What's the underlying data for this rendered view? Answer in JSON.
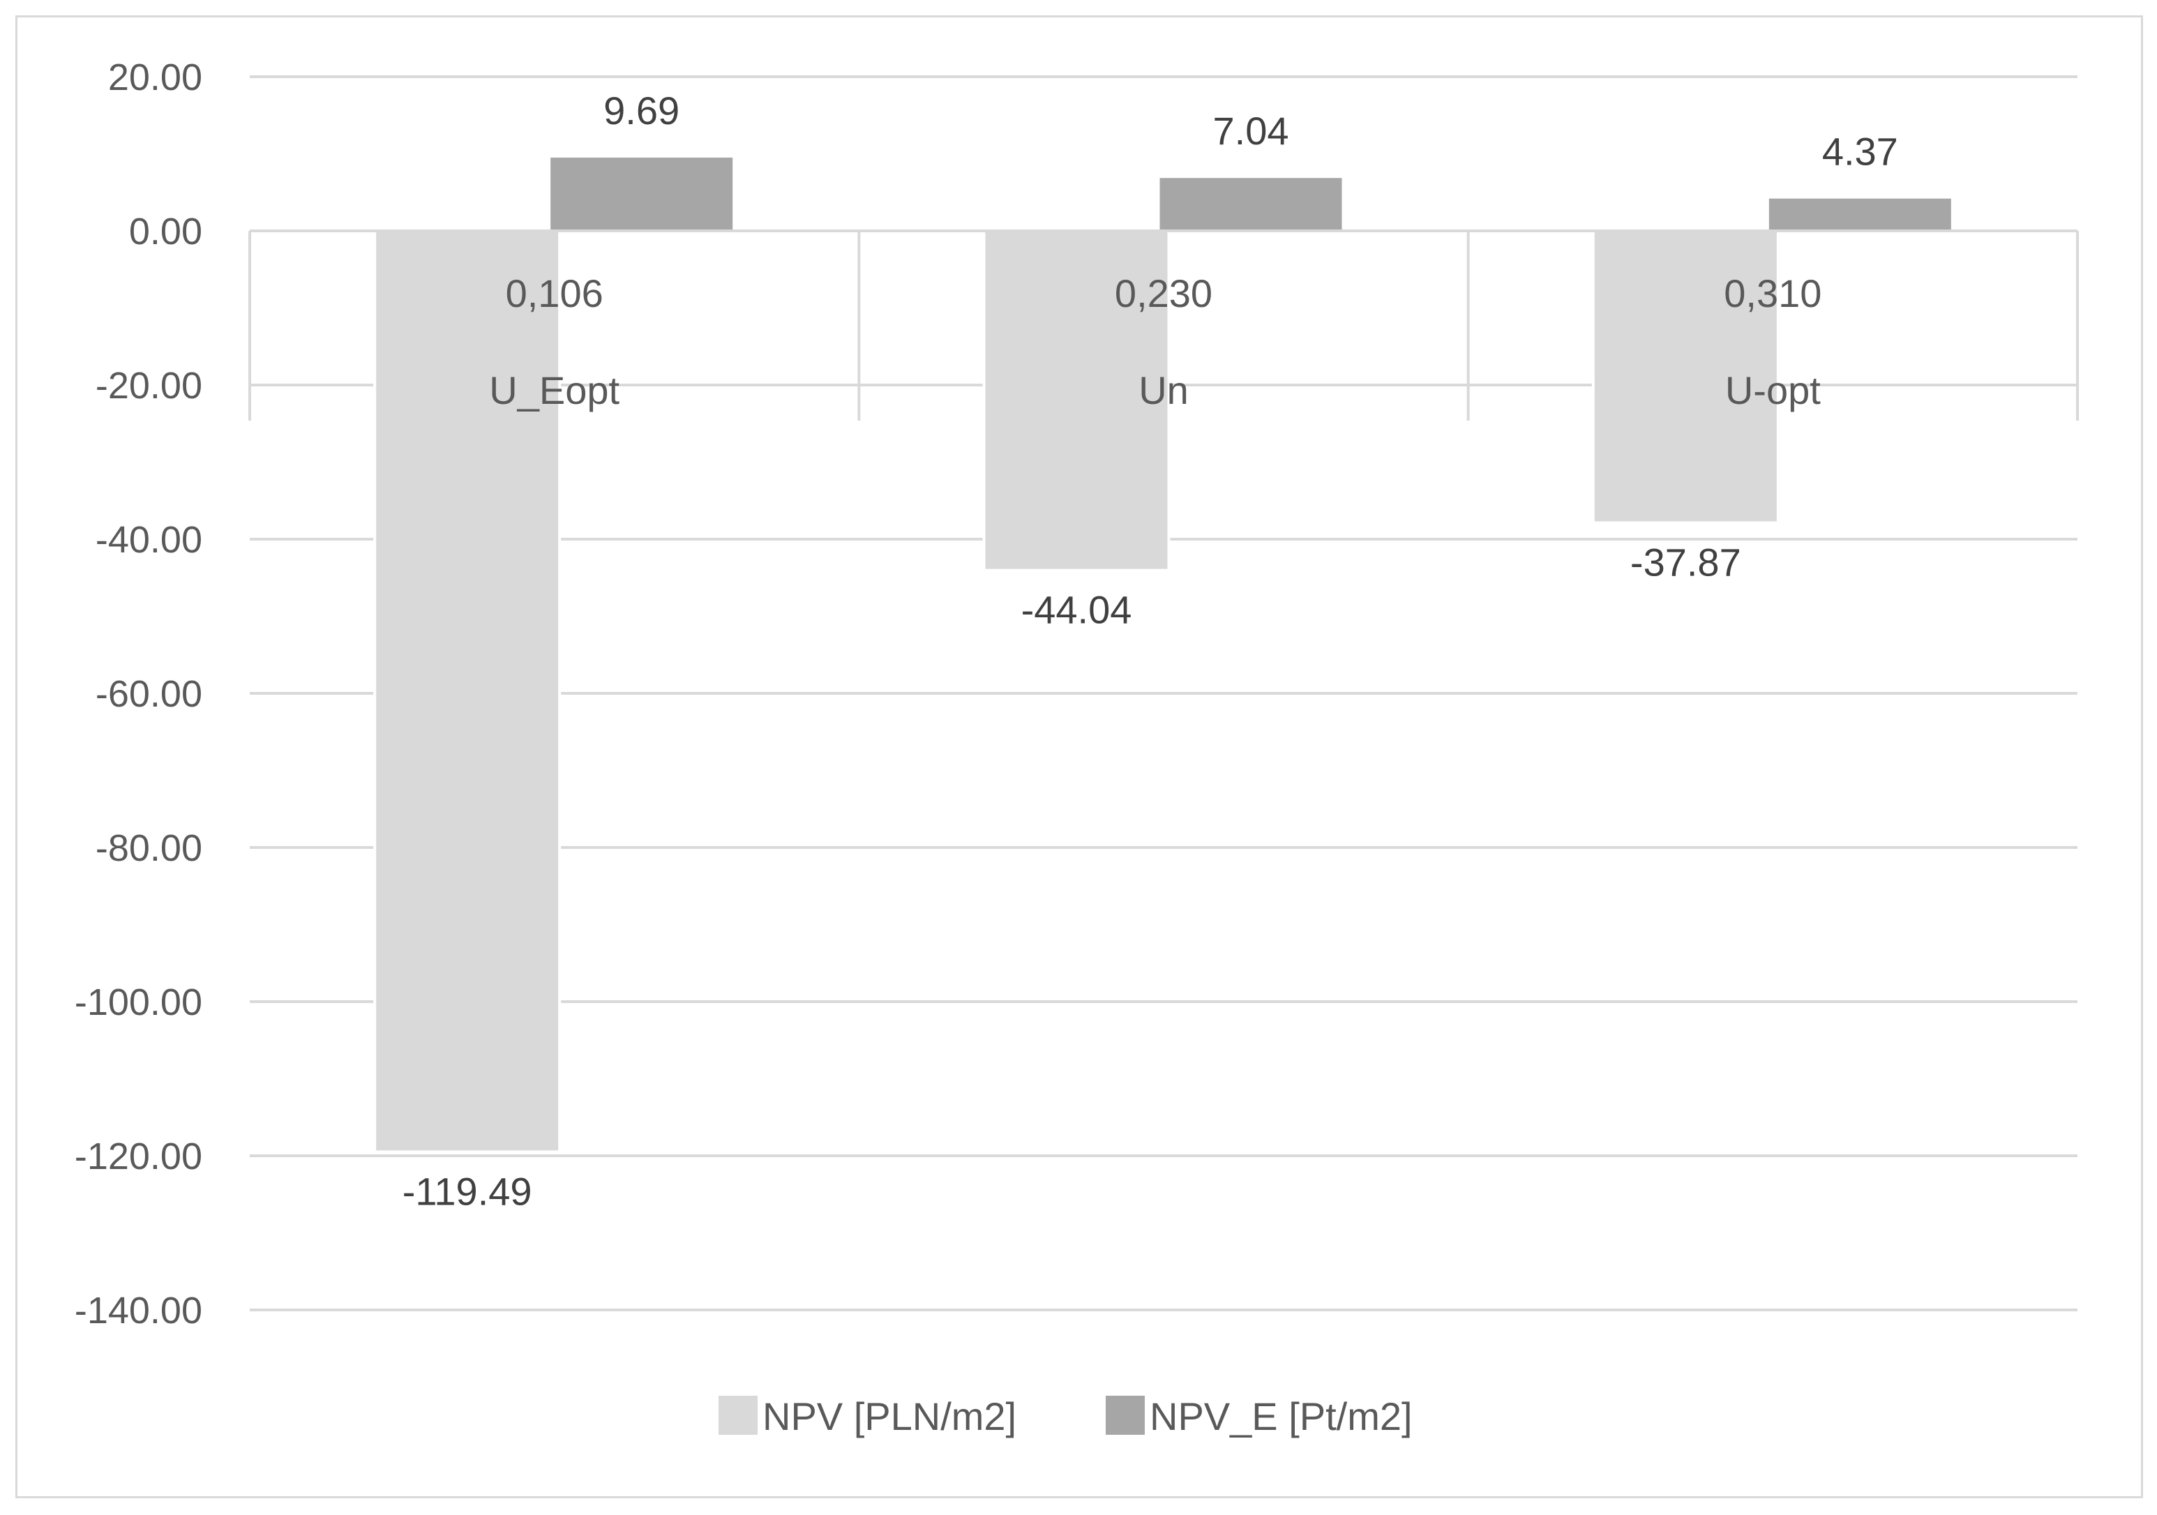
{
  "chart_data": {
    "type": "bar",
    "categories": [
      "U_Eopt",
      "Un",
      "U-opt"
    ],
    "category_values": [
      "0,106",
      "0,230",
      "0,310"
    ],
    "series": [
      {
        "name": "NPV [PLN/m2]",
        "values": [
          -119.49,
          -44.04,
          -37.87
        ],
        "labels": [
          "-119.49",
          "-44.04",
          "-37.87"
        ],
        "color": "#d9d9d9"
      },
      {
        "name": "NPV_E [Pt/m2]",
        "values": [
          9.69,
          7.04,
          4.37
        ],
        "labels": [
          "9.69",
          "7.04",
          "4.37"
        ],
        "color": "#a6a6a6"
      }
    ],
    "ylim": [
      -140,
      20
    ],
    "yticks": [
      "20.00",
      "0.00",
      "-20.00",
      "-40.00",
      "-60.00",
      "-80.00",
      "-100.00",
      "-120.00",
      "-140.00"
    ],
    "grid": true,
    "legend_position": "bottom",
    "title": "",
    "xlabel": "",
    "ylabel": ""
  }
}
